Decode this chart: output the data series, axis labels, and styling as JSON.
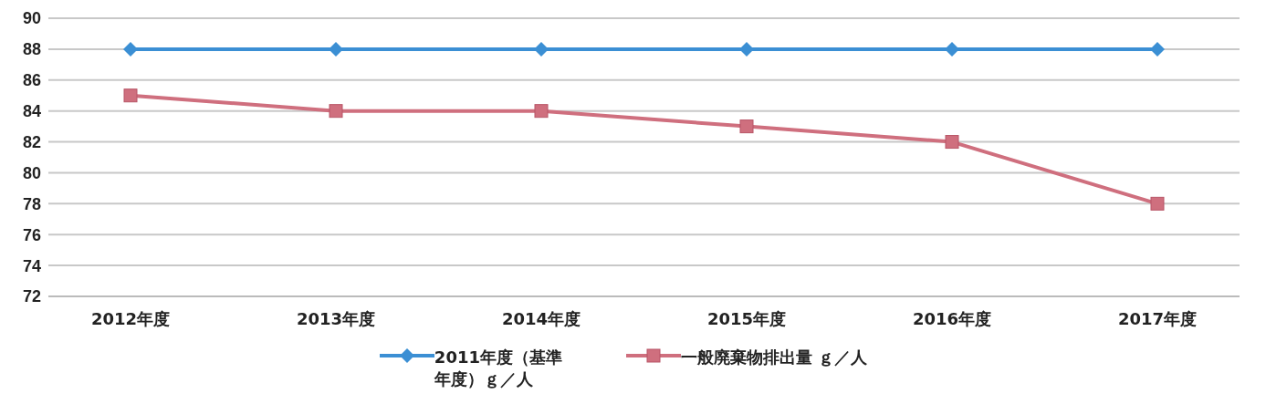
{
  "chart_data": {
    "type": "line",
    "categories": [
      "2012年度",
      "2013年度",
      "2014年度",
      "2015年度",
      "2016年度",
      "2017年度"
    ],
    "series": [
      {
        "name": "2011年度（基準年度）ｇ／人",
        "color": "#3b8fd4",
        "values": [
          88,
          88,
          88,
          88,
          88,
          88
        ],
        "marker": "diamond"
      },
      {
        "name": "一般廃棄物排出量 ｇ／人",
        "color": "#cf6f7e",
        "values": [
          85,
          84,
          84,
          83,
          82,
          78
        ],
        "marker": "square"
      }
    ],
    "ylim": [
      72,
      90
    ],
    "yticks": [
      72,
      74,
      76,
      78,
      80,
      82,
      84,
      86,
      88,
      90
    ],
    "grid": "y",
    "legend": "bottom"
  }
}
